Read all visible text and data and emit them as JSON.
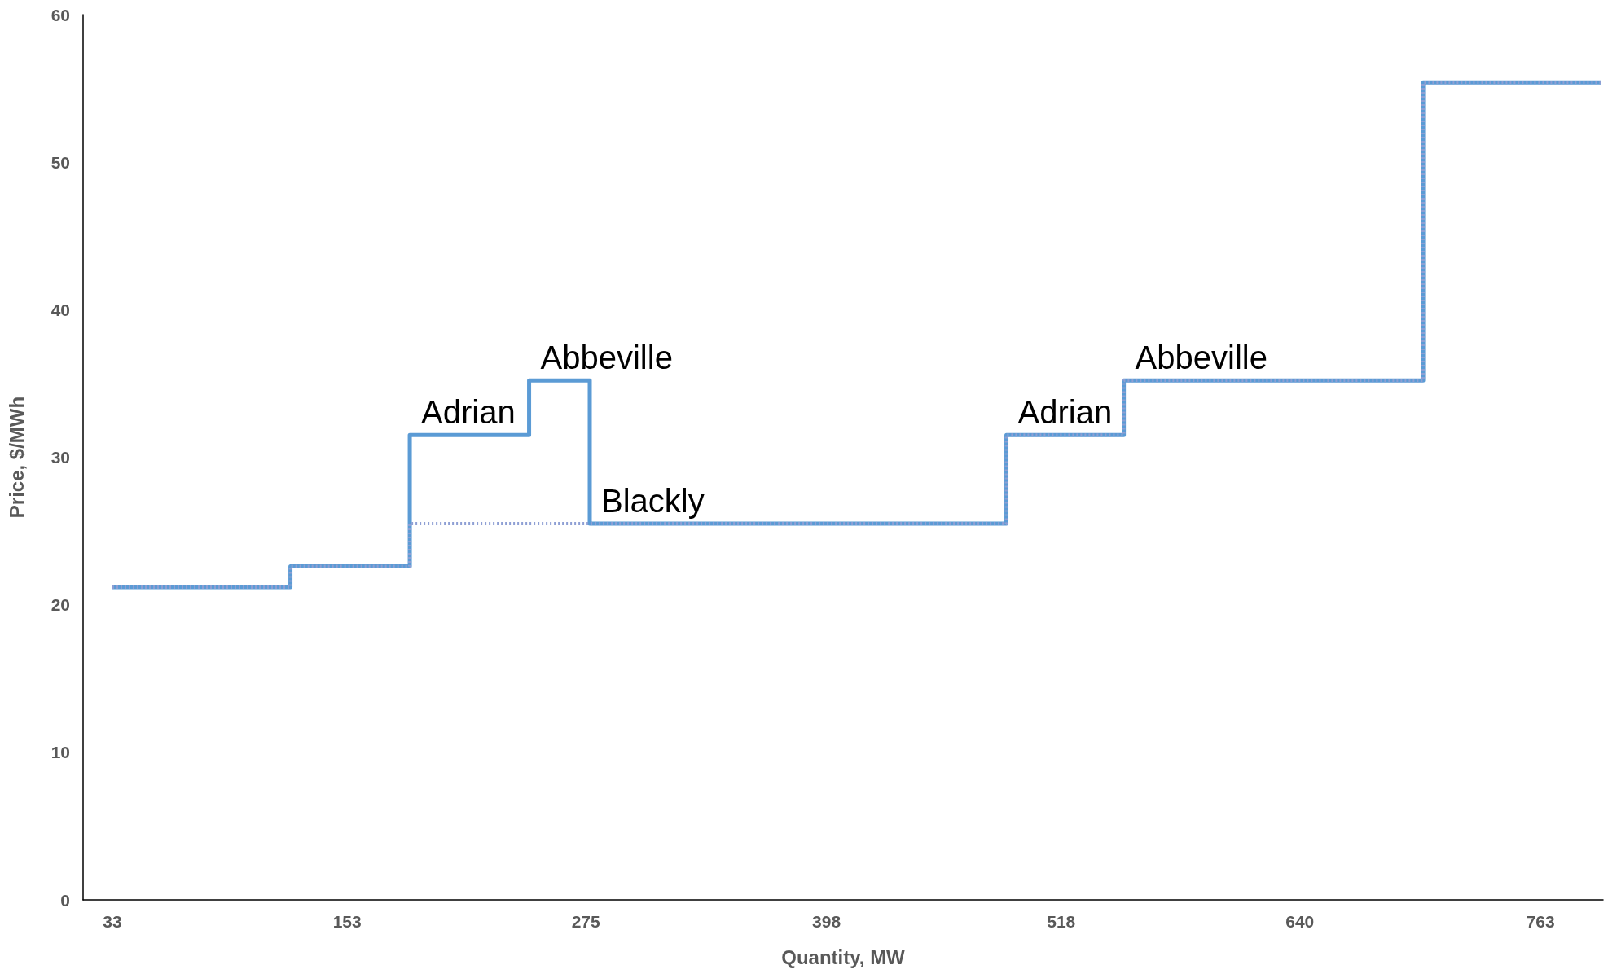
{
  "chart_data": {
    "type": "step",
    "xlabel": "Quantity, MW",
    "ylabel": "Price, $/MWh",
    "series": [
      {
        "color": "#5b9bd5",
        "line_style": "solid",
        "x": [
          33,
          124,
          185,
          246,
          277,
          490,
          550,
          703,
          794
        ],
        "values": [
          21.2,
          22.6,
          31.5,
          35.2,
          25.5,
          31.5,
          35.2,
          55.4,
          55.4
        ]
      },
      {
        "color": "#8e9fd4",
        "line_style": "dotted",
        "x": [
          33,
          124,
          185,
          490,
          550,
          703,
          794
        ],
        "values": [
          21.2,
          22.6,
          25.5,
          31.5,
          35.2,
          55.4,
          55.4
        ]
      }
    ],
    "xlim": [
      18,
      795
    ],
    "xticks": [
      33,
      153,
      275,
      398,
      518,
      640,
      763
    ],
    "ylim": [
      0,
      60
    ],
    "yticks": [
      0,
      10,
      20,
      30,
      40,
      50,
      60
    ],
    "grid": false,
    "marker": "none",
    "annotations": [
      {
        "text": "Adrian",
        "x": 185,
        "y": 31.5
      },
      {
        "text": "Abbeville",
        "x": 246,
        "y": 35.2
      },
      {
        "text": "Blackly",
        "x": 277,
        "y": 25.5
      },
      {
        "text": "Adrian",
        "x": 490,
        "y": 31.5
      },
      {
        "text": "Abbeville",
        "x": 550,
        "y": 35.2
      }
    ]
  }
}
